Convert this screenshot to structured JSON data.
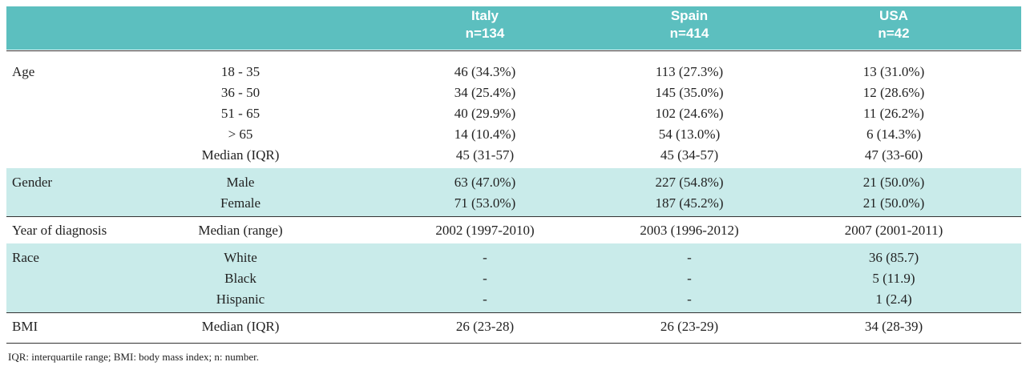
{
  "header": {
    "columns": [
      {
        "name": "Italy",
        "n": "n=134"
      },
      {
        "name": "Spain",
        "n": "n=414"
      },
      {
        "name": "USA",
        "n": "n=42"
      }
    ]
  },
  "groups": [
    {
      "label": "Age",
      "rows": [
        {
          "label": "18 - 35",
          "values": [
            "46 (34.3%)",
            "113 (27.3%)",
            "13 (31.0%)"
          ]
        },
        {
          "label": "36 - 50",
          "values": [
            "34 (25.4%)",
            "145 (35.0%)",
            "12 (28.6%)"
          ]
        },
        {
          "label": "51 - 65",
          "values": [
            "40 (29.9%)",
            "102 (24.6%)",
            "11 (26.2%)"
          ]
        },
        {
          "label": "> 65",
          "values": [
            "14 (10.4%)",
            "54 (13.0%)",
            "6 (14.3%)"
          ]
        },
        {
          "label": "Median (IQR)",
          "values": [
            "45 (31-57)",
            "45 (34-57)",
            "47 (33-60)"
          ]
        }
      ]
    },
    {
      "label": "Gender",
      "rows": [
        {
          "label": "Male",
          "values": [
            "63 (47.0%)",
            "227 (54.8%)",
            "21 (50.0%)"
          ]
        },
        {
          "label": "Female",
          "values": [
            "71 (53.0%)",
            "187 (45.2%)",
            "21 (50.0%)"
          ]
        }
      ]
    },
    {
      "label": "Year of diagnosis",
      "rows": [
        {
          "label": "Median (range)",
          "values": [
            "2002 (1997-2010)",
            "2003 (1996-2012)",
            "2007 (2001-2011)"
          ]
        }
      ]
    },
    {
      "label": "Race",
      "rows": [
        {
          "label": "White",
          "values": [
            "-",
            "-",
            "36 (85.7)"
          ]
        },
        {
          "label": "Black",
          "values": [
            "-",
            "-",
            "5 (11.9)"
          ]
        },
        {
          "label": "Hispanic",
          "values": [
            "-",
            "-",
            "1 (2.4)"
          ]
        }
      ]
    },
    {
      "label": "BMI",
      "rows": [
        {
          "label": "Median (IQR)",
          "values": [
            "26 (23-28)",
            "26 (23-29)",
            "34 (28-39)"
          ]
        }
      ]
    }
  ],
  "footnote": "IQR: interquartile range; BMI: body mass index; n: number."
}
